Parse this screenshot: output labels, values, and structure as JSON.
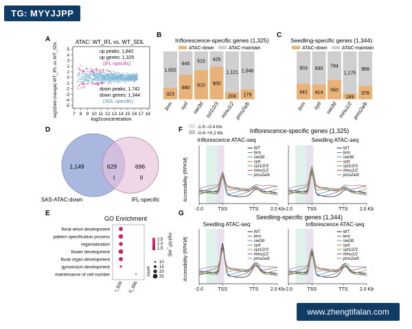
{
  "watermark_top": "TG: MYYJJPP",
  "watermark_bottom": "www.zhengtifalan.com",
  "colors": {
    "down": "#e8b278",
    "maintain": "#cfcfcf",
    "venn_left": "#8ea0d6",
    "venn_right": "#e8c1db",
    "ma_pink": "#d63a8a",
    "ma_blue": "#7fb7d8"
  },
  "panelA": {
    "letter": "A",
    "title": "ATAC: WT_IFL vs. WT_SDL",
    "ylabel": "log2(fold change) WT_IFL vs WT_SDL",
    "xlabel": "log2concentration",
    "xticks": [
      "7",
      "8",
      "9",
      "10",
      "11",
      "12",
      "13",
      "14",
      "15",
      "16",
      "17",
      "18"
    ],
    "yticks": [
      "5",
      "4",
      "3",
      "2",
      "1",
      "0",
      "-1",
      "-2",
      "-3",
      "-4",
      "-5"
    ],
    "up_peaks": "up peaks: 1,842",
    "up_genes": "up genes: 1,325",
    "up_tag": "(IFL-specific)",
    "down_peaks": "down peaks: 1,742",
    "down_genes": "down genes: 1,344",
    "down_tag": "(SDL-specific)"
  },
  "panelB": {
    "letter": "B",
    "title": "Inflorescence-specific genes (1,325)",
    "legend_down": "ATAC-down",
    "legend_maintain": "ATAC-maintain",
    "chart_data": {
      "type": "bar",
      "stacked": true,
      "total": 1325,
      "categories": [
        "brm",
        "syd",
        "swi3d",
        "syt1/2/3",
        "minu1/2",
        "pms2a/b"
      ],
      "series": [
        {
          "name": "ATAC-down",
          "values": [
            323,
            680,
            810,
            900,
            204,
            279
          ]
        },
        {
          "name": "ATAC-maintain",
          "values": [
            1002,
            645,
            515,
            425,
            1121,
            1046
          ]
        }
      ]
    }
  },
  "panelC": {
    "letter": "C",
    "title": "Seedling-specific genes (1,344)",
    "legend_down": "ATAC-down",
    "legend_maintain": "ATAC-maintain",
    "chart_data": {
      "type": "bar",
      "stacked": true,
      "total": 1344,
      "categories": [
        "brm",
        "syd",
        "swi3d",
        "minu1/2",
        "pms2a/b"
      ],
      "series": [
        {
          "name": "ATAC-down",
          "values": [
            441,
            414,
            550,
            169,
            376
          ]
        },
        {
          "name": "ATAC-maintain",
          "values": [
            903,
            930,
            794,
            1175,
            968
          ]
        }
      ]
    }
  },
  "panelD": {
    "letter": "D",
    "left_only": "1,149",
    "overlap": "629",
    "right_only": "696",
    "region_I": "I",
    "region_II": "II",
    "label_left": "SAS-ATAC-down",
    "label_right": "IFL-specific"
  },
  "panelE": {
    "letter": "E",
    "title": "GO Enrichment",
    "terms": [
      "floral whorl development",
      "pattern specification process",
      "regionalization",
      "flower development",
      "floral organ development",
      "gynoecium development",
      "maintenance of cell number"
    ],
    "groups": [
      "I_629",
      "II_696"
    ],
    "color_title": "-log10(P_adj)",
    "color_ticks": [
      "2.5",
      "2.0",
      "1.5"
    ],
    "size_title": "count",
    "size_ticks": [
      "10",
      "15",
      "20",
      "25"
    ],
    "chart_data": {
      "type": "scatter",
      "points": [
        {
          "term": "floral whorl development",
          "group": "I_629",
          "count": 22,
          "neglog10p": 2.5
        },
        {
          "term": "pattern specification process",
          "group": "I_629",
          "count": 24,
          "neglog10p": 2.4
        },
        {
          "term": "regionalization",
          "group": "I_629",
          "count": 21,
          "neglog10p": 2.3
        },
        {
          "term": "flower development",
          "group": "I_629",
          "count": 25,
          "neglog10p": 2.4
        },
        {
          "term": "floral organ development",
          "group": "I_629",
          "count": 22,
          "neglog10p": 2.2
        },
        {
          "term": "gynoecium development",
          "group": "I_629",
          "count": 13,
          "neglog10p": 2.0
        },
        {
          "term": "maintenance of cell number",
          "group": "II_696",
          "count": 10,
          "neglog10p": 1.5
        }
      ]
    }
  },
  "panelF": {
    "letter": "F",
    "title": "Inflorescence-specific genes (1,325)",
    "legend_shade1": "-1.5~-0.4 Kb",
    "legend_shade2": "-0.4~+0.2 Kb",
    "sub_left": "Inflorescence ATAC-seq",
    "sub_right": "Seedling ATAC-seq",
    "ylabel": "Accessibility (RPKM)",
    "xticks": [
      "-2.0",
      "TSS",
      "TTS",
      "2.0 Kb"
    ],
    "series": [
      "WT",
      "brm",
      "swi3d",
      "syd",
      "syt1/2/3",
      "minu1/2",
      "pms2a/b"
    ]
  },
  "panelG": {
    "letter": "G",
    "title": "Seedling-specific genes (1,344)",
    "sub_left": "Seedling ATAC-seq",
    "sub_right": "Inflorescence ATAC-seq",
    "ylabel": "Accessibility (RPKM)",
    "xticks": [
      "-2.0",
      "TSS",
      "TTS",
      "2.0 Kb"
    ],
    "series": [
      "WT",
      "brm",
      "swi3d",
      "syd",
      "syt1/2/3",
      "minu1/2",
      "pms2a/b"
    ]
  }
}
